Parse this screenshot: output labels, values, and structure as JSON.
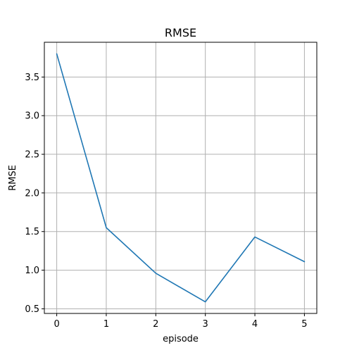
{
  "chart_data": {
    "type": "line",
    "title": "RMSE",
    "xlabel": "episode",
    "ylabel": "RMSE",
    "x": [
      0,
      1,
      2,
      3,
      4,
      5
    ],
    "series": [
      {
        "values": [
          3.8,
          1.55,
          0.96,
          0.59,
          1.43,
          1.11
        ],
        "color": "#1f77b4"
      }
    ],
    "xlim": [
      -0.25,
      5.25
    ],
    "ylim": [
      0.44,
      3.95
    ],
    "xticks": [
      0,
      1,
      2,
      3,
      4,
      5
    ],
    "xtick_labels": [
      "0",
      "1",
      "2",
      "3",
      "4",
      "5"
    ],
    "yticks": [
      0.5,
      1.0,
      1.5,
      2.0,
      2.5,
      3.0,
      3.5
    ],
    "ytick_labels": [
      "0.5",
      "1.0",
      "1.5",
      "2.0",
      "2.5",
      "3.0",
      "3.5"
    ],
    "grid": true,
    "legend": "none"
  }
}
